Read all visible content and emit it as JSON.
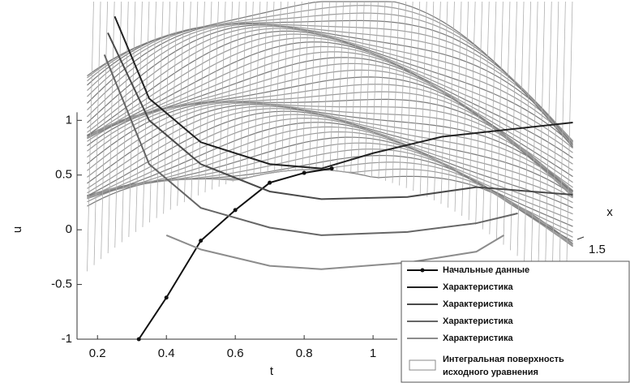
{
  "chart_data": {
    "type": "line",
    "xlabel": "t",
    "ylabel": "u",
    "zlabel": "x",
    "xlim": [
      0.15,
      1.6
    ],
    "ylim": [
      -1,
      2.1
    ],
    "xticks": [
      0.2,
      0.4,
      0.6,
      0.8,
      1
    ],
    "yticks": [
      -1,
      -0.5,
      0,
      0.5,
      1
    ],
    "zticks": [
      1.5
    ],
    "surface": {
      "name": "Интегральная поверхность исходного уравнения",
      "color": "#8a8a8a"
    },
    "series": [
      {
        "name": "Начальные данные",
        "color": "#111111",
        "markers": true,
        "x": [
          0.32,
          0.4,
          0.5,
          0.6,
          0.7,
          0.8,
          0.88
        ],
        "values": [
          -1,
          -0.62,
          -0.1,
          0.18,
          0.43,
          0.52,
          0.56
        ]
      },
      {
        "name": "Характеристика",
        "color": "#222222",
        "x": [
          0.25,
          0.35,
          0.5,
          0.7,
          0.85,
          1.0,
          1.2,
          1.58
        ],
        "values": [
          1.95,
          1.2,
          0.8,
          0.6,
          0.56,
          0.7,
          0.85,
          0.98
        ]
      },
      {
        "name": "Характеристика",
        "color": "#4a4a4a",
        "x": [
          0.23,
          0.35,
          0.5,
          0.7,
          0.85,
          1.1,
          1.3,
          1.58
        ],
        "values": [
          1.8,
          1.0,
          0.6,
          0.35,
          0.28,
          0.3,
          0.39,
          0.32
        ]
      },
      {
        "name": "Характеристика",
        "color": "#666666",
        "x": [
          0.22,
          0.35,
          0.5,
          0.7,
          0.85,
          1.1,
          1.3,
          1.42
        ],
        "values": [
          1.6,
          0.6,
          0.2,
          0.02,
          -0.05,
          -0.02,
          0.06,
          0.15
        ]
      },
      {
        "name": "Характеристика",
        "color": "#8c8c8c",
        "x": [
          0.4,
          0.5,
          0.7,
          0.85,
          1.1,
          1.3,
          1.38
        ],
        "values": [
          -0.05,
          -0.18,
          -0.33,
          -0.36,
          -0.3,
          -0.2,
          -0.05
        ]
      }
    ]
  }
}
